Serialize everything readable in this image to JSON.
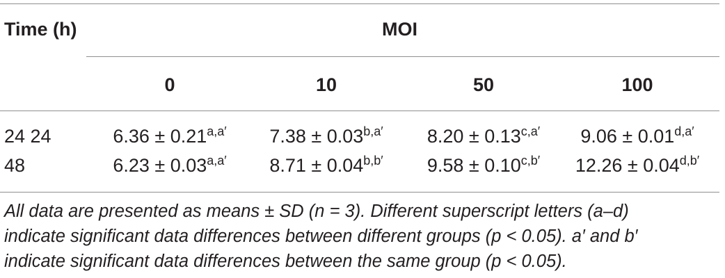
{
  "table": {
    "header": {
      "time": "Time (h)",
      "moi": "MOI",
      "columns": [
        "0",
        "10",
        "50",
        "100"
      ]
    },
    "rows": [
      {
        "time": "24 24",
        "cells": [
          {
            "value": "6.36 ± 0.21",
            "sup": "a,a′"
          },
          {
            "value": "7.38 ± 0.03",
            "sup": "b,a′"
          },
          {
            "value": "8.20 ± 0.13",
            "sup": "c,a′"
          },
          {
            "value": "9.06 ± 0.01",
            "sup": "d,a′"
          }
        ]
      },
      {
        "time": "48",
        "cells": [
          {
            "value": "6.23 ± 0.03",
            "sup": "a,a′"
          },
          {
            "value": "8.71 ± 0.04",
            "sup": "b,b′"
          },
          {
            "value": "9.58 ± 0.10",
            "sup": "c,b′"
          },
          {
            "value": "12.26 ± 0.04",
            "sup": "d,b′"
          }
        ]
      }
    ],
    "footnote": {
      "line1": "All data are presented as means ± SD (n = 3). Different superscript letters (a–d)",
      "line2": "indicate significant data differences between different groups (p < 0.05). a′ and b′",
      "line3": "indicate significant data differences between the same group (p < 0.05)."
    }
  }
}
